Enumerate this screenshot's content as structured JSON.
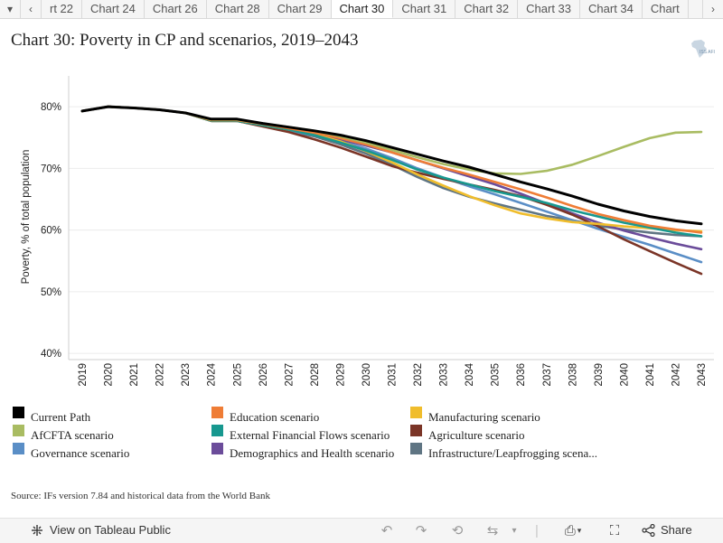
{
  "tabs": {
    "menu_icon": "caret-down-icon",
    "prev_icon": "chevron-left-icon",
    "next_icon": "chevron-right-icon",
    "items": [
      "rt 22",
      "Chart 24",
      "Chart 26",
      "Chart 28",
      "Chart 29",
      "Chart 30",
      "Chart 31",
      "Chart 32",
      "Chart 33",
      "Chart 34",
      "Chart"
    ],
    "active": "Chart 30"
  },
  "title": "Chart 30: Poverty in CP and scenarios, 2019–2043",
  "logo": {
    "text": "ISS AFI",
    "color": "#9ab7cf"
  },
  "source": "Source: IFs version 7.84 and historical data from the World Bank",
  "chart_data": {
    "type": "line",
    "title": "Chart 30: Poverty in CP and scenarios, 2019–2043",
    "xlabel": "",
    "ylabel": "Poverty, % of total population",
    "ylim": [
      39,
      85
    ],
    "yticks": [
      "40%",
      "50%",
      "60%",
      "70%",
      "80%"
    ],
    "ytick_values": [
      40,
      50,
      60,
      70,
      80
    ],
    "grid": "horizontal",
    "legend_position": "bottom",
    "x": [
      2019,
      2020,
      2021,
      2022,
      2023,
      2024,
      2025,
      2026,
      2027,
      2028,
      2029,
      2030,
      2031,
      2032,
      2033,
      2034,
      2035,
      2036,
      2037,
      2038,
      2039,
      2040,
      2041,
      2042,
      2043
    ],
    "series": [
      {
        "name": "Infrastructure/Leapfrogging scenario",
        "color": "#5f7583",
        "values": [
          79.3,
          80.0,
          79.8,
          79.5,
          79.0,
          77.7,
          77.7,
          76.9,
          76.0,
          75.2,
          73.9,
          72.4,
          70.6,
          68.6,
          66.8,
          65.4,
          64.3,
          63.3,
          62.3,
          61.6,
          60.7,
          60.1,
          59.6,
          59.2,
          59.0
        ]
      },
      {
        "name": "Governance scenario",
        "color": "#5a8ec6",
        "values": [
          79.3,
          80.0,
          79.8,
          79.5,
          79.0,
          77.7,
          77.7,
          76.9,
          76.1,
          75.4,
          74.4,
          73.2,
          71.7,
          70.0,
          68.5,
          67.1,
          65.8,
          64.4,
          63.0,
          61.6,
          60.2,
          58.9,
          57.6,
          56.2,
          54.8
        ]
      },
      {
        "name": "Demographics and Health scenario",
        "color": "#6b4c9a",
        "values": [
          79.3,
          80.0,
          79.8,
          79.5,
          79.0,
          77.8,
          77.7,
          77.1,
          76.3,
          75.6,
          74.7,
          73.7,
          72.6,
          71.3,
          70.0,
          68.7,
          67.4,
          65.9,
          64.3,
          62.7,
          61.2,
          59.9,
          58.8,
          57.8,
          56.9
        ]
      },
      {
        "name": "Agriculture scenario",
        "color": "#7b3527",
        "values": [
          79.3,
          80.0,
          79.8,
          79.5,
          79.0,
          77.7,
          77.7,
          76.8,
          75.9,
          74.7,
          73.4,
          71.9,
          70.4,
          69.3,
          68.3,
          67.4,
          66.5,
          65.5,
          64.1,
          62.5,
          60.6,
          58.5,
          56.6,
          54.7,
          52.9
        ]
      },
      {
        "name": "Manufacturing scenario",
        "color": "#f0bd2c",
        "values": [
          79.3,
          80.0,
          79.8,
          79.5,
          79.0,
          77.7,
          77.7,
          77.0,
          76.3,
          75.5,
          74.4,
          72.8,
          71.0,
          69.0,
          67.2,
          65.5,
          64.0,
          62.7,
          61.9,
          61.3,
          61.0,
          60.6,
          60.3,
          60.0,
          59.8
        ]
      },
      {
        "name": "External Financial Flows scenario",
        "color": "#17988f",
        "values": [
          79.3,
          80.0,
          79.8,
          79.5,
          79.0,
          77.7,
          77.7,
          77.0,
          76.3,
          75.4,
          74.2,
          72.9,
          71.4,
          69.8,
          68.5,
          67.4,
          66.3,
          65.4,
          64.4,
          63.2,
          62.2,
          61.2,
          60.4,
          59.6,
          59.0
        ]
      },
      {
        "name": "Education scenario",
        "color": "#ef7d36",
        "values": [
          79.3,
          80.0,
          79.8,
          79.5,
          79.0,
          77.8,
          77.8,
          77.2,
          76.5,
          75.8,
          74.9,
          73.9,
          72.6,
          71.3,
          70.1,
          69.0,
          67.8,
          66.6,
          65.3,
          63.9,
          62.6,
          61.6,
          60.7,
          60.1,
          59.6
        ]
      },
      {
        "name": "AfCFTA scenario",
        "color": "#a9bc62",
        "values": [
          79.3,
          80.0,
          79.8,
          79.5,
          79.0,
          77.9,
          77.9,
          77.3,
          76.7,
          76.1,
          75.2,
          74.2,
          73.0,
          71.8,
          70.7,
          69.8,
          69.2,
          69.1,
          69.6,
          70.6,
          72.0,
          73.5,
          74.9,
          75.8,
          75.9
        ]
      },
      {
        "name": "Current Path",
        "color": "#000000",
        "values": [
          79.3,
          80.0,
          79.8,
          79.5,
          79.0,
          78.0,
          78.0,
          77.3,
          76.7,
          76.1,
          75.4,
          74.5,
          73.4,
          72.3,
          71.2,
          70.2,
          69.0,
          67.8,
          66.7,
          65.5,
          64.2,
          63.1,
          62.2,
          61.5,
          61.0
        ]
      }
    ],
    "legend": [
      {
        "name": "Current Path",
        "color": "#000000"
      },
      {
        "name": "Education scenario",
        "color": "#ef7d36"
      },
      {
        "name": "Manufacturing scenario",
        "color": "#f0bd2c"
      },
      {
        "name": "AfCFTA scenario",
        "color": "#a9bc62"
      },
      {
        "name": "External Financial Flows scenario",
        "color": "#17988f"
      },
      {
        "name": "Agriculture scenario",
        "color": "#7b3527"
      },
      {
        "name": "Governance scenario",
        "color": "#5a8ec6"
      },
      {
        "name": "Demographics and Health scenario",
        "color": "#6b4c9a"
      },
      {
        "name": "Infrastructure/Leapfrogging scena...",
        "color": "#5f7583"
      }
    ]
  },
  "footer": {
    "view_label": "View on Tableau Public",
    "view_icon": "tableau-logo-icon",
    "share_label": "Share",
    "share_icon": "share-icon",
    "tools": [
      "undo-icon",
      "redo-icon",
      "revert-icon",
      "refresh-icon",
      "pause-icon",
      "download-icon",
      "fullscreen-icon"
    ]
  }
}
